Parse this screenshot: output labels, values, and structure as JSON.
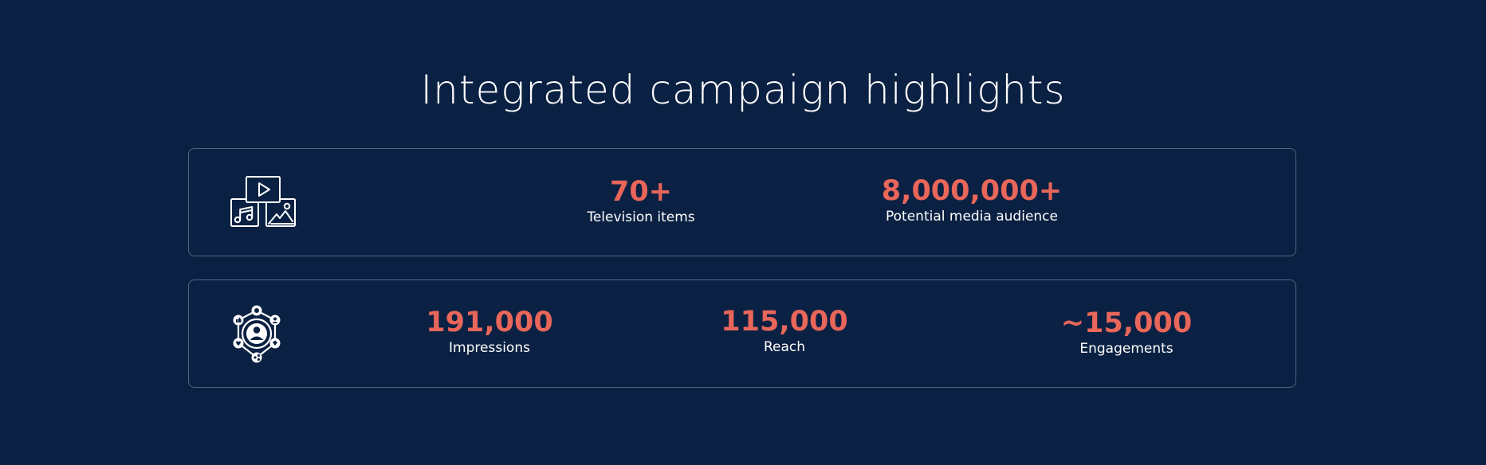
{
  "title": "Integrated campaign highlights",
  "colors": {
    "background": "#0b2143",
    "accent": "#e8665a",
    "card_border": "#4f6485",
    "text": "#ffffff"
  },
  "cards": [
    {
      "icon": "media-icon",
      "stats": [
        {
          "value": "70+",
          "label": "Television items"
        },
        {
          "value": "8,000,000+",
          "label": "Potential media audience"
        }
      ]
    },
    {
      "icon": "social-network-icon",
      "stats": [
        {
          "value": "191,000",
          "label": "Impressions"
        },
        {
          "value": "115,000",
          "label": "Reach"
        },
        {
          "value": "~15,000",
          "label": "Engagements"
        }
      ]
    }
  ]
}
